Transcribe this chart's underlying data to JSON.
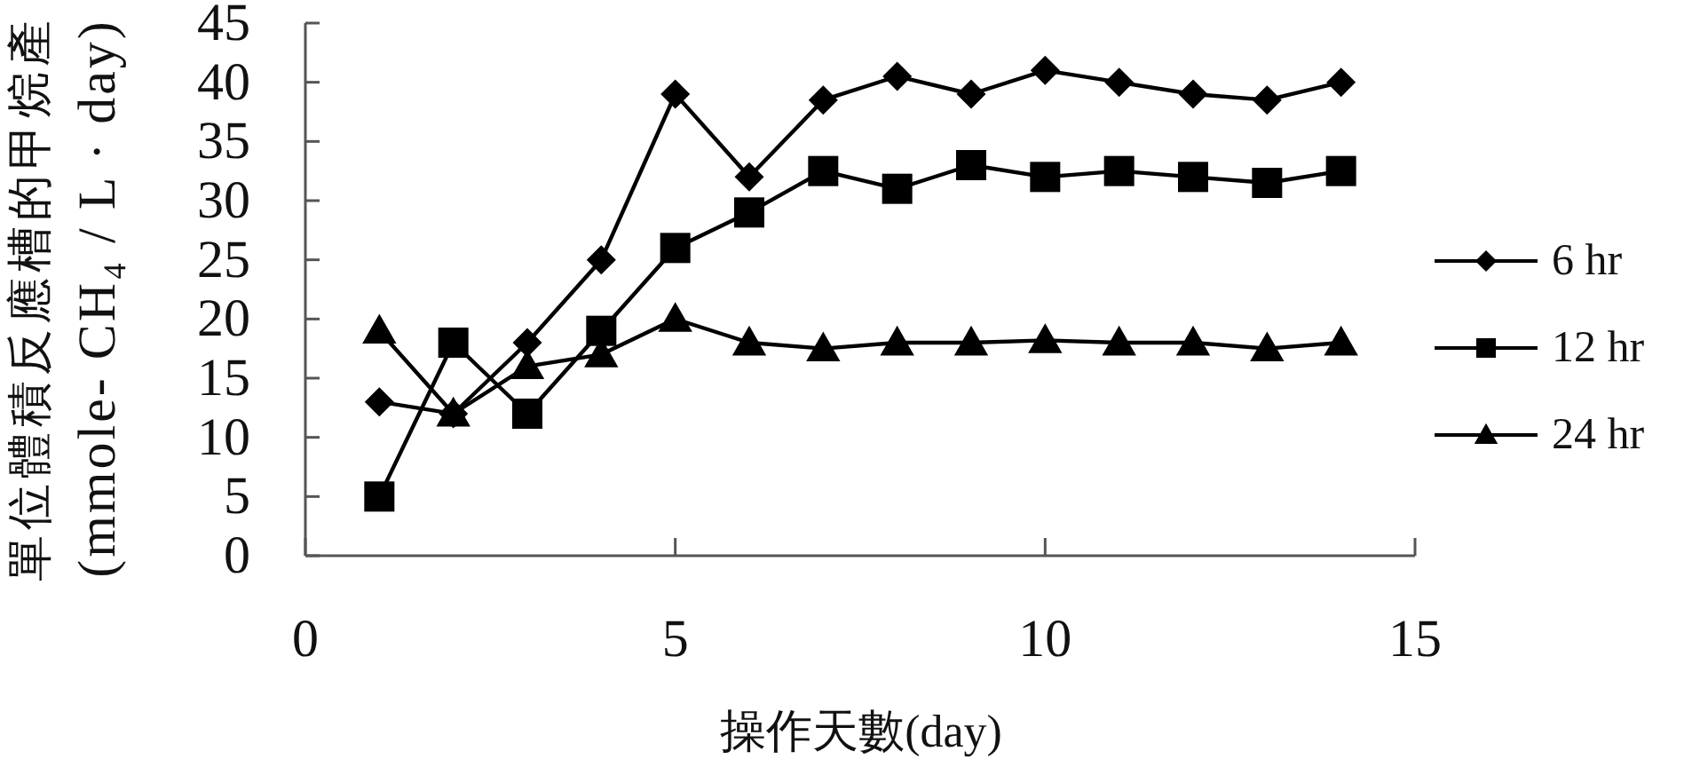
{
  "chart_data": {
    "type": "line",
    "xlabel": "操作天數(day)",
    "ylabel": "單位體積反應槽的甲烷產\n(mmole- CH₄ / L · day)",
    "x": [
      1,
      2,
      3,
      4,
      5,
      6,
      7,
      8,
      9,
      10,
      11,
      12,
      13,
      14
    ],
    "xlim": [
      0,
      15
    ],
    "xticks": [
      0,
      5,
      10,
      15
    ],
    "ylim": [
      0,
      45
    ],
    "yticks": [
      0,
      5,
      10,
      15,
      20,
      25,
      30,
      35,
      40,
      45
    ],
    "legend": "right",
    "series": [
      {
        "name": "6 hr",
        "color": "#000000",
        "marker": "diamond",
        "values": [
          13,
          12,
          18,
          25,
          39,
          32,
          38.5,
          40.5,
          39,
          41,
          40,
          39,
          38.5,
          40
        ]
      },
      {
        "name": "12 hr",
        "color": "#000000",
        "marker": "square",
        "values": [
          5,
          18,
          12,
          19,
          26,
          29,
          32.5,
          31,
          33,
          32,
          32.5,
          32,
          31.5,
          32.5
        ]
      },
      {
        "name": "24 hr",
        "color": "#000000",
        "marker": "triangle",
        "values": [
          19,
          12,
          16,
          17,
          20,
          18,
          17.5,
          18,
          18,
          18.2,
          18,
          18,
          17.5,
          18
        ]
      }
    ]
  }
}
